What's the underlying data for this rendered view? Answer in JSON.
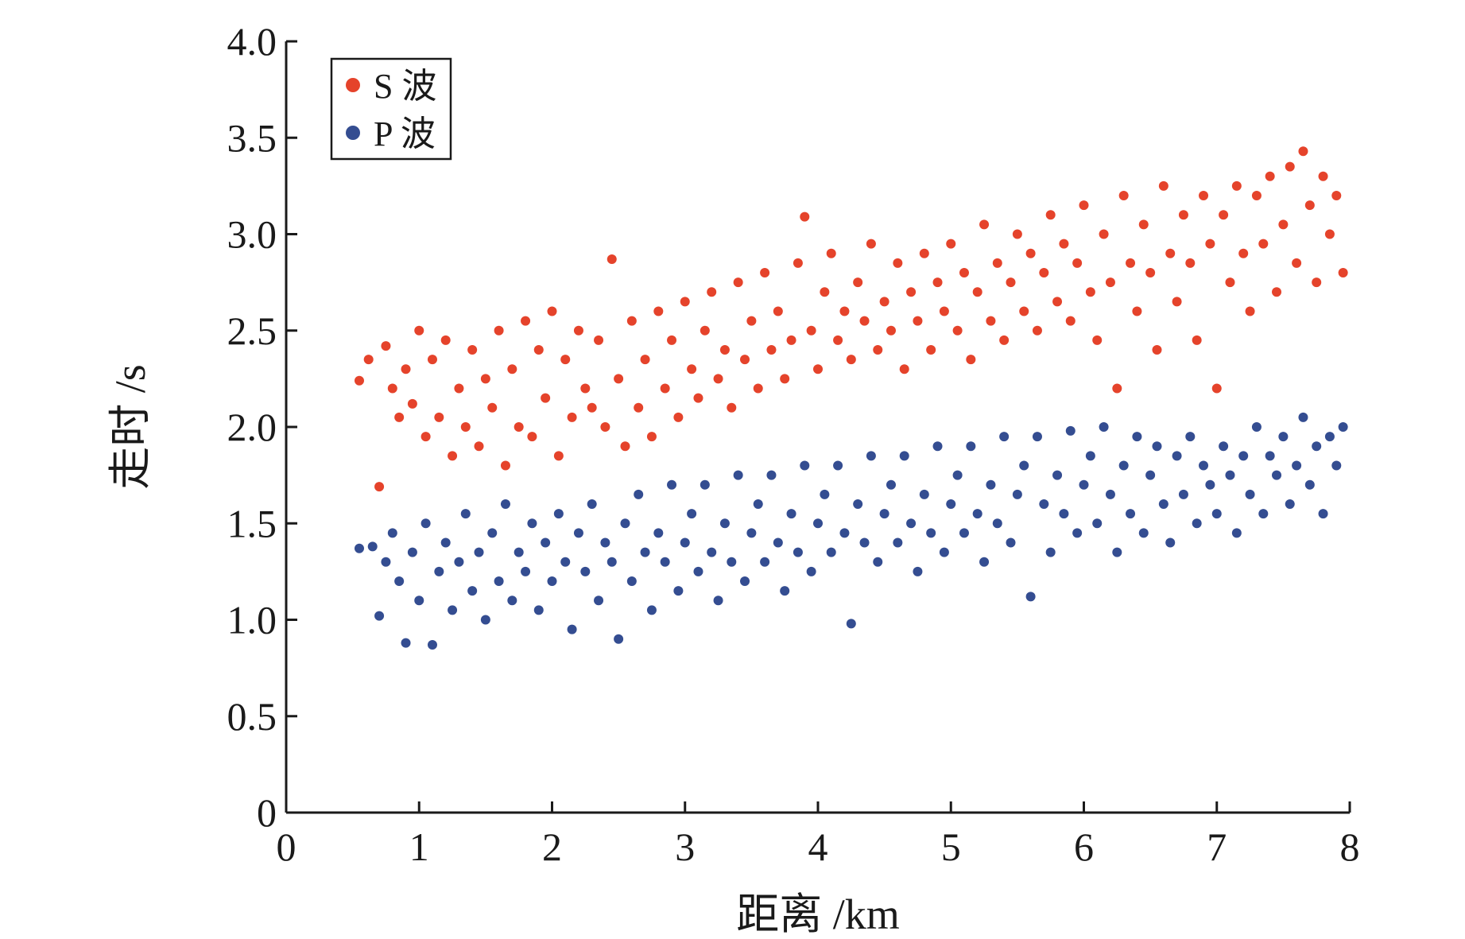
{
  "chart_data": {
    "type": "scatter",
    "title": "",
    "xlabel": "距离 /km",
    "ylabel": "走时 /s",
    "xlim": [
      0,
      8
    ],
    "ylim": [
      0,
      4.0
    ],
    "x_ticks": [
      "0",
      "1",
      "2",
      "3",
      "4",
      "5",
      "6",
      "7",
      "8"
    ],
    "y_ticks": [
      "0",
      "0.5",
      "1.0",
      "1.5",
      "2.0",
      "2.5",
      "3.0",
      "3.5",
      "4.0"
    ],
    "grid": false,
    "legend_position": "top-left",
    "series": [
      {
        "name": "S 波",
        "color": "#e5432b",
        "points": [
          [
            0.55,
            2.24
          ],
          [
            0.62,
            2.35
          ],
          [
            0.7,
            1.69
          ],
          [
            0.75,
            2.42
          ],
          [
            0.8,
            2.2
          ],
          [
            0.85,
            2.05
          ],
          [
            0.9,
            2.3
          ],
          [
            0.95,
            2.12
          ],
          [
            1.0,
            2.5
          ],
          [
            1.05,
            1.95
          ],
          [
            1.1,
            2.35
          ],
          [
            1.15,
            2.05
          ],
          [
            1.2,
            2.45
          ],
          [
            1.25,
            1.85
          ],
          [
            1.3,
            2.2
          ],
          [
            1.35,
            2.0
          ],
          [
            1.4,
            2.4
          ],
          [
            1.45,
            1.9
          ],
          [
            1.5,
            2.25
          ],
          [
            1.55,
            2.1
          ],
          [
            1.6,
            2.5
          ],
          [
            1.65,
            1.8
          ],
          [
            1.7,
            2.3
          ],
          [
            1.75,
            2.0
          ],
          [
            1.8,
            2.55
          ],
          [
            1.85,
            1.95
          ],
          [
            1.9,
            2.4
          ],
          [
            1.95,
            2.15
          ],
          [
            2.0,
            2.6
          ],
          [
            2.05,
            1.85
          ],
          [
            2.1,
            2.35
          ],
          [
            2.15,
            2.05
          ],
          [
            2.2,
            2.5
          ],
          [
            2.25,
            2.2
          ],
          [
            2.3,
            2.1
          ],
          [
            2.35,
            2.45
          ],
          [
            2.4,
            2.0
          ],
          [
            2.45,
            2.87
          ],
          [
            2.5,
            2.25
          ],
          [
            2.55,
            1.9
          ],
          [
            2.6,
            2.55
          ],
          [
            2.65,
            2.1
          ],
          [
            2.7,
            2.35
          ],
          [
            2.75,
            1.95
          ],
          [
            2.8,
            2.6
          ],
          [
            2.85,
            2.2
          ],
          [
            2.9,
            2.45
          ],
          [
            2.95,
            2.05
          ],
          [
            3.0,
            2.65
          ],
          [
            3.05,
            2.3
          ],
          [
            3.1,
            2.15
          ],
          [
            3.15,
            2.5
          ],
          [
            3.2,
            2.7
          ],
          [
            3.25,
            2.25
          ],
          [
            3.3,
            2.4
          ],
          [
            3.35,
            2.1
          ],
          [
            3.4,
            2.75
          ],
          [
            3.45,
            2.35
          ],
          [
            3.5,
            2.55
          ],
          [
            3.55,
            2.2
          ],
          [
            3.6,
            2.8
          ],
          [
            3.65,
            2.4
          ],
          [
            3.7,
            2.6
          ],
          [
            3.75,
            2.25
          ],
          [
            3.8,
            2.45
          ],
          [
            3.85,
            2.85
          ],
          [
            3.9,
            3.09
          ],
          [
            3.95,
            2.5
          ],
          [
            4.0,
            2.3
          ],
          [
            4.05,
            2.7
          ],
          [
            4.1,
            2.9
          ],
          [
            4.15,
            2.45
          ],
          [
            4.2,
            2.6
          ],
          [
            4.25,
            2.35
          ],
          [
            4.3,
            2.75
          ],
          [
            4.35,
            2.55
          ],
          [
            4.4,
            2.95
          ],
          [
            4.45,
            2.4
          ],
          [
            4.5,
            2.65
          ],
          [
            4.55,
            2.5
          ],
          [
            4.6,
            2.85
          ],
          [
            4.65,
            2.3
          ],
          [
            4.7,
            2.7
          ],
          [
            4.75,
            2.55
          ],
          [
            4.8,
            2.9
          ],
          [
            4.85,
            2.4
          ],
          [
            4.9,
            2.75
          ],
          [
            4.95,
            2.6
          ],
          [
            5.0,
            2.95
          ],
          [
            5.05,
            2.5
          ],
          [
            5.1,
            2.8
          ],
          [
            5.15,
            2.35
          ],
          [
            5.2,
            2.7
          ],
          [
            5.25,
            3.05
          ],
          [
            5.3,
            2.55
          ],
          [
            5.35,
            2.85
          ],
          [
            5.4,
            2.45
          ],
          [
            5.45,
            2.75
          ],
          [
            5.5,
            3.0
          ],
          [
            5.55,
            2.6
          ],
          [
            5.6,
            2.9
          ],
          [
            5.65,
            2.5
          ],
          [
            5.7,
            2.8
          ],
          [
            5.75,
            3.1
          ],
          [
            5.8,
            2.65
          ],
          [
            5.85,
            2.95
          ],
          [
            5.9,
            2.55
          ],
          [
            5.95,
            2.85
          ],
          [
            6.0,
            3.15
          ],
          [
            6.05,
            2.7
          ],
          [
            6.1,
            2.45
          ],
          [
            6.15,
            3.0
          ],
          [
            6.2,
            2.75
          ],
          [
            6.25,
            2.2
          ],
          [
            6.3,
            3.2
          ],
          [
            6.35,
            2.85
          ],
          [
            6.4,
            2.6
          ],
          [
            6.45,
            3.05
          ],
          [
            6.5,
            2.8
          ],
          [
            6.55,
            2.4
          ],
          [
            6.6,
            3.25
          ],
          [
            6.65,
            2.9
          ],
          [
            6.7,
            2.65
          ],
          [
            6.75,
            3.1
          ],
          [
            6.8,
            2.85
          ],
          [
            6.85,
            2.45
          ],
          [
            6.9,
            3.2
          ],
          [
            6.95,
            2.95
          ],
          [
            7.0,
            2.2
          ],
          [
            7.05,
            3.1
          ],
          [
            7.1,
            2.75
          ],
          [
            7.15,
            3.25
          ],
          [
            7.2,
            2.9
          ],
          [
            7.25,
            2.6
          ],
          [
            7.3,
            3.2
          ],
          [
            7.35,
            2.95
          ],
          [
            7.4,
            3.3
          ],
          [
            7.45,
            2.7
          ],
          [
            7.5,
            3.05
          ],
          [
            7.55,
            3.35
          ],
          [
            7.6,
            2.85
          ],
          [
            7.65,
            3.43
          ],
          [
            7.7,
            3.15
          ],
          [
            7.75,
            2.75
          ],
          [
            7.8,
            3.3
          ],
          [
            7.85,
            3.0
          ],
          [
            7.9,
            3.2
          ],
          [
            7.95,
            2.8
          ]
        ]
      },
      {
        "name": "P 波",
        "color": "#344d91",
        "points": [
          [
            0.55,
            1.37
          ],
          [
            0.65,
            1.38
          ],
          [
            0.7,
            1.02
          ],
          [
            0.75,
            1.3
          ],
          [
            0.8,
            1.45
          ],
          [
            0.85,
            1.2
          ],
          [
            0.9,
            0.88
          ],
          [
            0.95,
            1.35
          ],
          [
            1.0,
            1.1
          ],
          [
            1.05,
            1.5
          ],
          [
            1.1,
            0.87
          ],
          [
            1.15,
            1.25
          ],
          [
            1.2,
            1.4
          ],
          [
            1.25,
            1.05
          ],
          [
            1.3,
            1.3
          ],
          [
            1.35,
            1.55
          ],
          [
            1.4,
            1.15
          ],
          [
            1.45,
            1.35
          ],
          [
            1.5,
            1.0
          ],
          [
            1.55,
            1.45
          ],
          [
            1.6,
            1.2
          ],
          [
            1.65,
            1.6
          ],
          [
            1.7,
            1.1
          ],
          [
            1.75,
            1.35
          ],
          [
            1.8,
            1.25
          ],
          [
            1.85,
            1.5
          ],
          [
            1.9,
            1.05
          ],
          [
            1.95,
            1.4
          ],
          [
            2.0,
            1.2
          ],
          [
            2.05,
            1.55
          ],
          [
            2.1,
            1.3
          ],
          [
            2.15,
            0.95
          ],
          [
            2.2,
            1.45
          ],
          [
            2.25,
            1.25
          ],
          [
            2.3,
            1.6
          ],
          [
            2.35,
            1.1
          ],
          [
            2.4,
            1.4
          ],
          [
            2.45,
            1.3
          ],
          [
            2.5,
            0.9
          ],
          [
            2.55,
            1.5
          ],
          [
            2.6,
            1.2
          ],
          [
            2.65,
            1.65
          ],
          [
            2.7,
            1.35
          ],
          [
            2.75,
            1.05
          ],
          [
            2.8,
            1.45
          ],
          [
            2.85,
            1.3
          ],
          [
            2.9,
            1.7
          ],
          [
            2.95,
            1.15
          ],
          [
            3.0,
            1.4
          ],
          [
            3.05,
            1.55
          ],
          [
            3.1,
            1.25
          ],
          [
            3.15,
            1.7
          ],
          [
            3.2,
            1.35
          ],
          [
            3.25,
            1.1
          ],
          [
            3.3,
            1.5
          ],
          [
            3.35,
            1.3
          ],
          [
            3.4,
            1.75
          ],
          [
            3.45,
            1.2
          ],
          [
            3.5,
            1.45
          ],
          [
            3.55,
            1.6
          ],
          [
            3.6,
            1.3
          ],
          [
            3.65,
            1.75
          ],
          [
            3.7,
            1.4
          ],
          [
            3.75,
            1.15
          ],
          [
            3.8,
            1.55
          ],
          [
            3.85,
            1.35
          ],
          [
            3.9,
            1.8
          ],
          [
            3.95,
            1.25
          ],
          [
            4.0,
            1.5
          ],
          [
            4.05,
            1.65
          ],
          [
            4.1,
            1.35
          ],
          [
            4.15,
            1.8
          ],
          [
            4.2,
            1.45
          ],
          [
            4.25,
            0.98
          ],
          [
            4.3,
            1.6
          ],
          [
            4.35,
            1.4
          ],
          [
            4.4,
            1.85
          ],
          [
            4.45,
            1.3
          ],
          [
            4.5,
            1.55
          ],
          [
            4.55,
            1.7
          ],
          [
            4.6,
            1.4
          ],
          [
            4.65,
            1.85
          ],
          [
            4.7,
            1.5
          ],
          [
            4.75,
            1.25
          ],
          [
            4.8,
            1.65
          ],
          [
            4.85,
            1.45
          ],
          [
            4.9,
            1.9
          ],
          [
            4.95,
            1.35
          ],
          [
            5.0,
            1.6
          ],
          [
            5.05,
            1.75
          ],
          [
            5.1,
            1.45
          ],
          [
            5.15,
            1.9
          ],
          [
            5.2,
            1.55
          ],
          [
            5.25,
            1.3
          ],
          [
            5.3,
            1.7
          ],
          [
            5.35,
            1.5
          ],
          [
            5.4,
            1.95
          ],
          [
            5.45,
            1.4
          ],
          [
            5.5,
            1.65
          ],
          [
            5.55,
            1.8
          ],
          [
            5.6,
            1.12
          ],
          [
            5.65,
            1.95
          ],
          [
            5.7,
            1.6
          ],
          [
            5.75,
            1.35
          ],
          [
            5.8,
            1.75
          ],
          [
            5.85,
            1.55
          ],
          [
            5.9,
            1.98
          ],
          [
            5.95,
            1.45
          ],
          [
            6.0,
            1.7
          ],
          [
            6.05,
            1.85
          ],
          [
            6.1,
            1.5
          ],
          [
            6.15,
            2.0
          ],
          [
            6.2,
            1.65
          ],
          [
            6.25,
            1.35
          ],
          [
            6.3,
            1.8
          ],
          [
            6.35,
            1.55
          ],
          [
            6.4,
            1.95
          ],
          [
            6.45,
            1.45
          ],
          [
            6.5,
            1.75
          ],
          [
            6.55,
            1.9
          ],
          [
            6.6,
            1.6
          ],
          [
            6.65,
            1.4
          ],
          [
            6.7,
            1.85
          ],
          [
            6.75,
            1.65
          ],
          [
            6.8,
            1.95
          ],
          [
            6.85,
            1.5
          ],
          [
            6.9,
            1.8
          ],
          [
            6.95,
            1.7
          ],
          [
            7.0,
            1.55
          ],
          [
            7.05,
            1.9
          ],
          [
            7.1,
            1.75
          ],
          [
            7.15,
            1.45
          ],
          [
            7.2,
            1.85
          ],
          [
            7.25,
            1.65
          ],
          [
            7.3,
            2.0
          ],
          [
            7.35,
            1.55
          ],
          [
            7.4,
            1.85
          ],
          [
            7.45,
            1.75
          ],
          [
            7.5,
            1.95
          ],
          [
            7.55,
            1.6
          ],
          [
            7.6,
            1.8
          ],
          [
            7.65,
            2.05
          ],
          [
            7.7,
            1.7
          ],
          [
            7.75,
            1.9
          ],
          [
            7.8,
            1.55
          ],
          [
            7.85,
            1.95
          ],
          [
            7.9,
            1.8
          ],
          [
            7.95,
            2.0
          ]
        ]
      }
    ]
  }
}
